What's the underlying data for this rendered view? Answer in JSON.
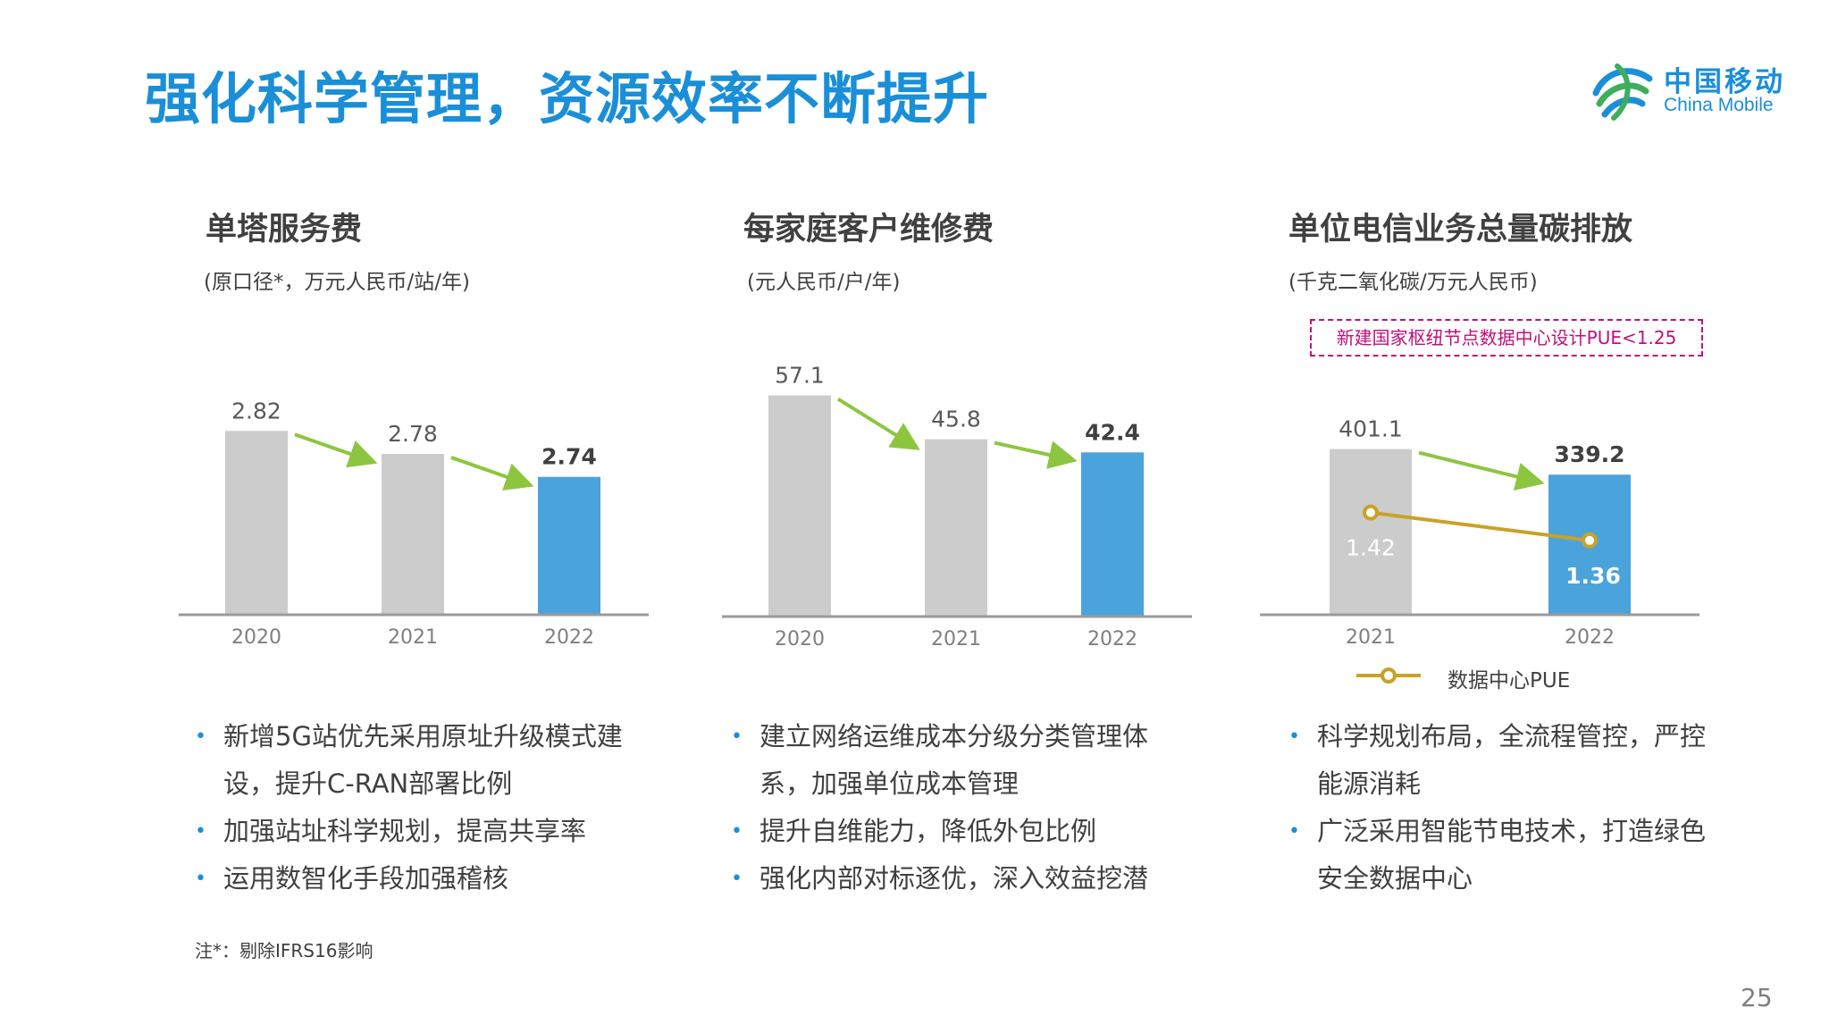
{
  "page": {
    "title": "强化科学管理，资源效率不断提升",
    "footnote": "注*：剔除IFRS16影响",
    "page_number": "25",
    "accent_color": "#1a8fd8",
    "gray_bar_color": "#cccccc",
    "highlight_bar_color": "#4ba3db",
    "trend_arrow_color": "#8cc63f",
    "pue_line_color": "#c9a227"
  },
  "logo": {
    "cn": "中国移动",
    "en": "China Mobile"
  },
  "panels": [
    {
      "title": "单塔服务费",
      "unit": "(原口径*，万元人民币/站/年)",
      "bullets": [
        "新增5G站优先采用原址升级模式建设，提升C-RAN部署比例",
        "加强站址科学规划，提高共享率",
        "运用数智化手段加强稽核"
      ]
    },
    {
      "title": "每家庭客户维修费",
      "unit": "(元人民币/户/年)",
      "bullets": [
        "建立网络运维成本分级分类管理体系，加强单位成本管理",
        "提升自维能力，降低外包比例",
        "强化内部对标逐优，深入效益挖潜"
      ]
    },
    {
      "title": "单位电信业务总量碳排放",
      "unit": "(千克二氧化碳/万元人民币)",
      "note": "新建国家枢纽节点数据中心设计PUE<1.25",
      "legend": "数据中心PUE",
      "bullets": [
        "科学规划布局，全流程管控，严控能源消耗",
        "广泛采用智能节电技术，打造绿色安全数据中心"
      ]
    }
  ],
  "chart_data": [
    {
      "type": "bar",
      "title": "单塔服务费",
      "ylabel": "(原口径*，万元人民币/站/年)",
      "categories": [
        "2020",
        "2021",
        "2022"
      ],
      "series": [
        {
          "values": [
            2.82,
            2.78,
            2.74
          ]
        }
      ],
      "value_labels": [
        "2.82",
        "2.78",
        "2.74"
      ],
      "highlight_index": 2,
      "ylim": [
        2.5,
        2.85
      ],
      "trend": "down"
    },
    {
      "type": "bar",
      "title": "每家庭客户维修费",
      "ylabel": "(元人民币/户/年)",
      "categories": [
        "2020",
        "2021",
        "2022"
      ],
      "series": [
        {
          "values": [
            57.1,
            45.8,
            42.4
          ]
        }
      ],
      "value_labels": [
        "57.1",
        "45.8",
        "42.4"
      ],
      "highlight_index": 2,
      "ylim": [
        0,
        60
      ],
      "trend": "down"
    },
    {
      "type": "bar",
      "title": "单位电信业务总量碳排放",
      "ylabel": "(千克二氧化碳/万元人民币)",
      "categories": [
        "2021",
        "2022"
      ],
      "series": [
        {
          "values": [
            401.1,
            339.2
          ]
        },
        {
          "name": "数据中心PUE",
          "type": "line",
          "values": [
            1.42,
            1.36
          ]
        }
      ],
      "value_labels": [
        "401.1",
        "339.2"
      ],
      "line_labels": [
        "1.42",
        "1.36"
      ],
      "highlight_index": 1,
      "ylim": [
        0,
        450
      ],
      "trend": "down"
    }
  ]
}
